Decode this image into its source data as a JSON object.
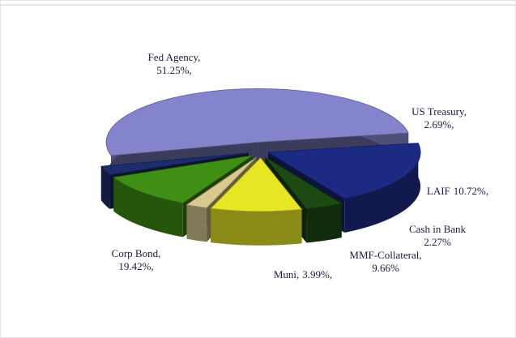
{
  "chart_data": {
    "type": "pie",
    "categories": [
      "Fed Agency,",
      "US Treasury,",
      "LAIF",
      "Cash in Bank",
      "MMF-Collateral,",
      "Muni,",
      "Corp Bond,"
    ],
    "values": [
      51.25,
      2.69,
      10.72,
      2.27,
      9.66,
      3.99,
      19.42
    ],
    "value_labels": [
      "51.25%,",
      "2.69%,",
      "10.72%,",
      "2.27%",
      "9.66%",
      "3.99%,",
      "19.42%,"
    ],
    "colors": [
      "#8484cc",
      "#1c2c6c",
      "#3f8f14",
      "#d9c98f",
      "#e6e624",
      "#1d4a12",
      "#1c2a84"
    ]
  }
}
